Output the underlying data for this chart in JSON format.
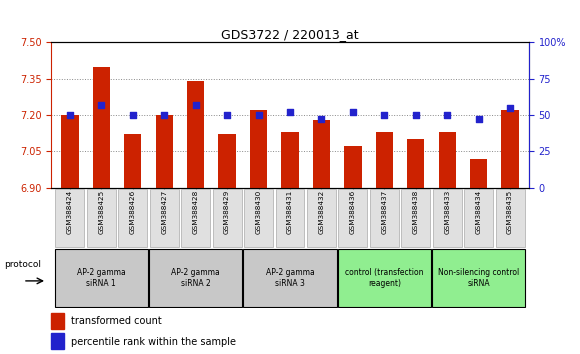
{
  "title": "GDS3722 / 220013_at",
  "samples": [
    "GSM388424",
    "GSM388425",
    "GSM388426",
    "GSM388427",
    "GSM388428",
    "GSM388429",
    "GSM388430",
    "GSM388431",
    "GSM388432",
    "GSM388436",
    "GSM388437",
    "GSM388438",
    "GSM388433",
    "GSM388434",
    "GSM388435"
  ],
  "bar_values": [
    7.2,
    7.4,
    7.12,
    7.2,
    7.34,
    7.12,
    7.22,
    7.13,
    7.18,
    7.07,
    7.13,
    7.1,
    7.13,
    7.02,
    7.22
  ],
  "dot_values": [
    50,
    57,
    50,
    50,
    57,
    50,
    50,
    52,
    47,
    52,
    50,
    50,
    50,
    47,
    55
  ],
  "ylim_left": [
    6.9,
    7.5
  ],
  "ylim_right": [
    0,
    100
  ],
  "yticks_left": [
    6.9,
    7.05,
    7.2,
    7.35,
    7.5
  ],
  "yticks_right": [
    0,
    25,
    50,
    75,
    100
  ],
  "bar_color": "#cc2200",
  "dot_color": "#2222cc",
  "groups": [
    {
      "label": "AP-2 gamma\nsiRNA 1",
      "indices": [
        0,
        1,
        2
      ],
      "color": "#c8c8c8"
    },
    {
      "label": "AP-2 gamma\nsiRNA 2",
      "indices": [
        3,
        4,
        5
      ],
      "color": "#c8c8c8"
    },
    {
      "label": "AP-2 gamma\nsiRNA 3",
      "indices": [
        6,
        7,
        8
      ],
      "color": "#c8c8c8"
    },
    {
      "label": "control (transfection\nreagent)",
      "indices": [
        9,
        10,
        11
      ],
      "color": "#90ee90"
    },
    {
      "label": "Non-silencing control\nsiRNA",
      "indices": [
        12,
        13,
        14
      ],
      "color": "#90ee90"
    }
  ],
  "protocol_label": "protocol",
  "legend_bar_label": "transformed count",
  "legend_dot_label": "percentile rank within the sample",
  "grid_color": "#888888",
  "left_axis_color": "#cc2200",
  "right_axis_color": "#2222cc"
}
